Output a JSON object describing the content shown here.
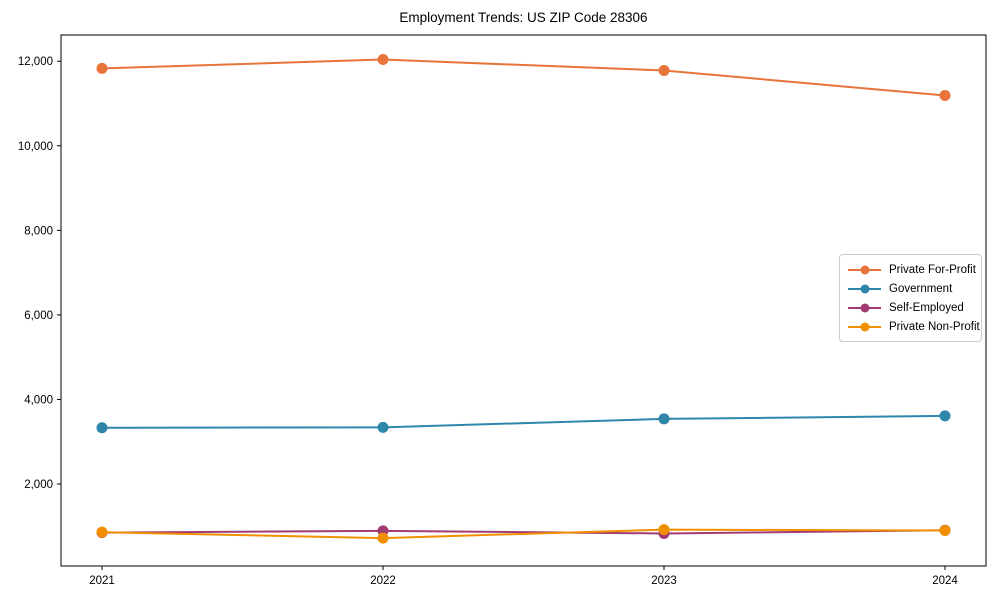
{
  "chart_data": {
    "type": "line",
    "title": "Employment Trends: US ZIP Code 28306",
    "xlabel": "",
    "ylabel": "",
    "x": [
      2021,
      2022,
      2023,
      2024
    ],
    "x_tick_labels": [
      "2021",
      "2022",
      "2023",
      "2024"
    ],
    "y_ticks": [
      2000,
      4000,
      6000,
      8000,
      10000,
      12000
    ],
    "y_tick_labels": [
      "2,000",
      "4,000",
      "6,000",
      "8,000",
      "10,000",
      "12,000"
    ],
    "ylim": [
      60,
      12620
    ],
    "grid": false,
    "legend_position": "center right",
    "background_color": "#ffffff",
    "axis_color": "#000000",
    "series": [
      {
        "name": "Private For-Profit",
        "color": "#e8743b",
        "values": [
          11830,
          12040,
          11780,
          11190
        ]
      },
      {
        "name": "Government",
        "color": "#2e86ab",
        "values": [
          3330,
          3340,
          3540,
          3610
        ]
      },
      {
        "name": "Self-Employed",
        "color": "#a23b72",
        "values": [
          850,
          890,
          830,
          905
        ]
      },
      {
        "name": "Private Non-Profit",
        "color": "#f18f01",
        "values": [
          860,
          720,
          920,
          900
        ]
      }
    ]
  }
}
